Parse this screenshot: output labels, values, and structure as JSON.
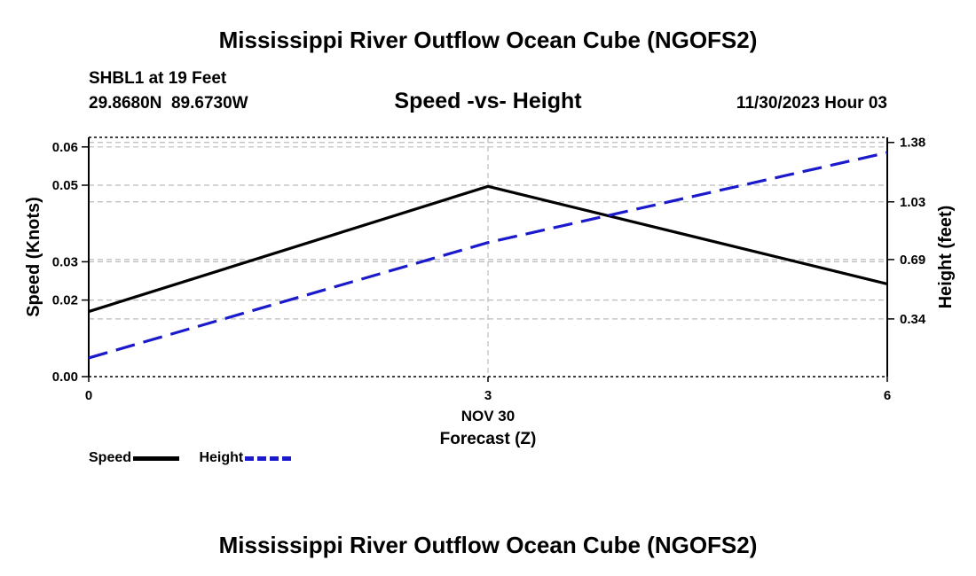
{
  "header": {
    "title": "Mississippi River Outflow Ocean Cube (NGOFS2)",
    "footer_title": "Mississippi River Outflow Ocean Cube (NGOFS2)",
    "station": "SHBL1 at 19 Feet",
    "coordinates": "29.8680N  89.6730W",
    "subtitle": "Speed -vs- Height",
    "datetime": "11/30/2023 Hour 03"
  },
  "chart_data": {
    "type": "line",
    "title": "Speed -vs- Height",
    "xlabel": "Forecast (Z)",
    "xdate_label": "NOV 30",
    "ylabel": "Speed (Knots)",
    "y2label": "Height (feet)",
    "x": [
      0,
      3,
      6
    ],
    "xlim": [
      0,
      6
    ],
    "xticks": [
      "0",
      "3",
      "6"
    ],
    "ylim": [
      0,
      0.0625
    ],
    "yticks": [
      0.0,
      0.02,
      0.03,
      0.05,
      0.06
    ],
    "ytick_labels": [
      "0.00",
      "0.02",
      "0.03",
      "0.05",
      "0.06"
    ],
    "y2lim": [
      0,
      1.41
    ],
    "y2ticks": [
      0.34,
      0.69,
      1.03,
      1.38
    ],
    "y2tick_labels": [
      "0.34",
      "0.69",
      "1.03",
      "1.38"
    ],
    "grid": true,
    "series": [
      {
        "name": "Speed",
        "axis": "left",
        "color": "#000000",
        "style": "solid",
        "values": [
          0.017,
          0.0497,
          0.0242
        ]
      },
      {
        "name": "Height",
        "axis": "right",
        "color": "#1a1acc",
        "style": "dashed",
        "values": [
          0.11,
          0.79,
          1.32
        ]
      }
    ]
  },
  "legend": {
    "speed_label": "Speed",
    "height_label": "Height"
  }
}
